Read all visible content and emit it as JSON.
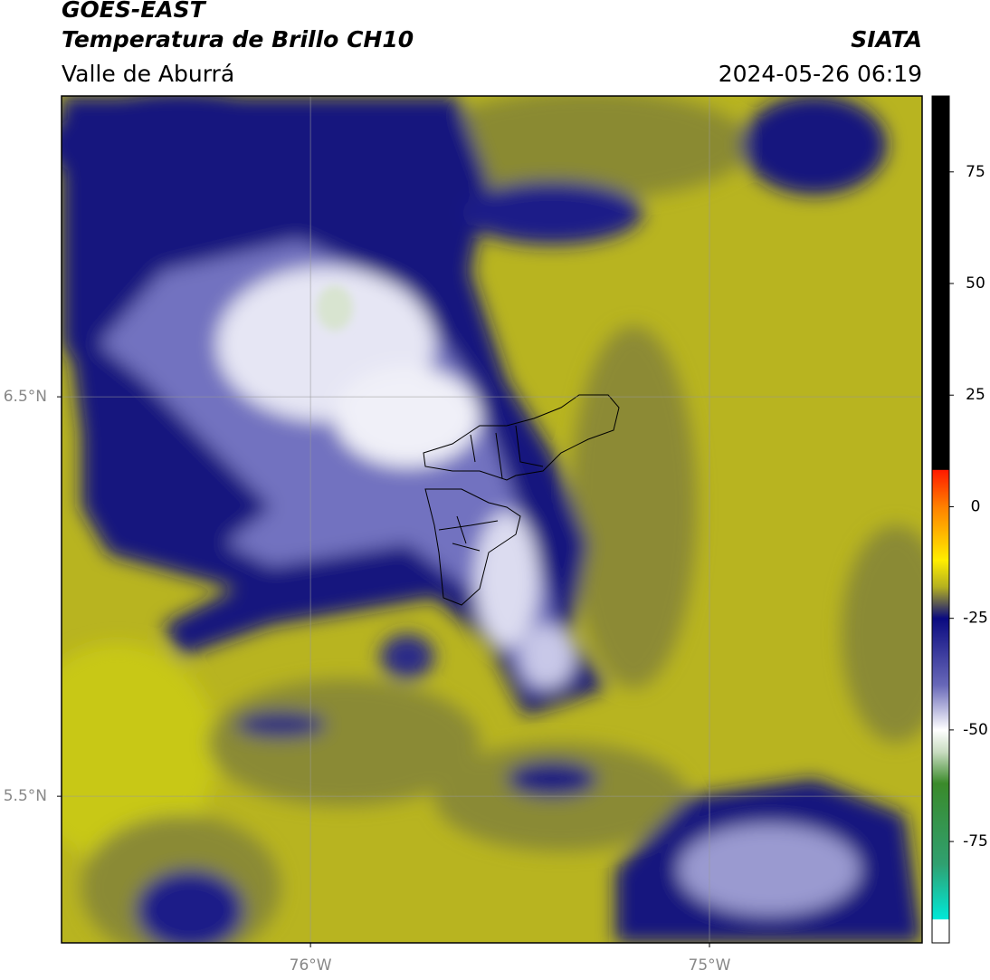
{
  "header": {
    "title": "GOES-EAST",
    "subtitle": "Temperatura de Brillo CH10",
    "region": "Valle de Aburrá",
    "source": "SIATA",
    "timestamp": "2024-05-26 06:19"
  },
  "map": {
    "xlim": [
      -76.624,
      -74.467
    ],
    "ylim": [
      5.133,
      7.253
    ],
    "xticks": [
      {
        "value": -76,
        "label": "76°W"
      },
      {
        "value": -75,
        "label": "75°W"
      }
    ],
    "yticks": [
      {
        "value": 6.5,
        "label": "6.5°N"
      },
      {
        "value": 5.5,
        "label": "5.5°N"
      }
    ],
    "grid": true
  },
  "colorbar": {
    "lim": [
      -97.7,
      92
    ],
    "ticks": [
      75,
      50,
      25,
      0,
      -25,
      -50,
      -75
    ],
    "stops": [
      {
        "value": 92,
        "color": "#000000"
      },
      {
        "value": 8.3,
        "color": "#000000"
      },
      {
        "value": 8.2,
        "color": "#ff1a00"
      },
      {
        "value": 0,
        "color": "#ff8000"
      },
      {
        "value": -12,
        "color": "#ffee00"
      },
      {
        "value": -18,
        "color": "#b4b020"
      },
      {
        "value": -25,
        "color": "#0a0a80"
      },
      {
        "value": -40,
        "color": "#6868b8"
      },
      {
        "value": -50,
        "color": "#ffffff"
      },
      {
        "value": -55,
        "color": "#c8dcc0"
      },
      {
        "value": -62,
        "color": "#3a8a2a"
      },
      {
        "value": -80,
        "color": "#30a070"
      },
      {
        "value": -92.4,
        "color": "#00e8d8"
      },
      {
        "value": -92.5,
        "color": "#ffffff"
      },
      {
        "value": -97.7,
        "color": "#ffffff"
      }
    ]
  }
}
